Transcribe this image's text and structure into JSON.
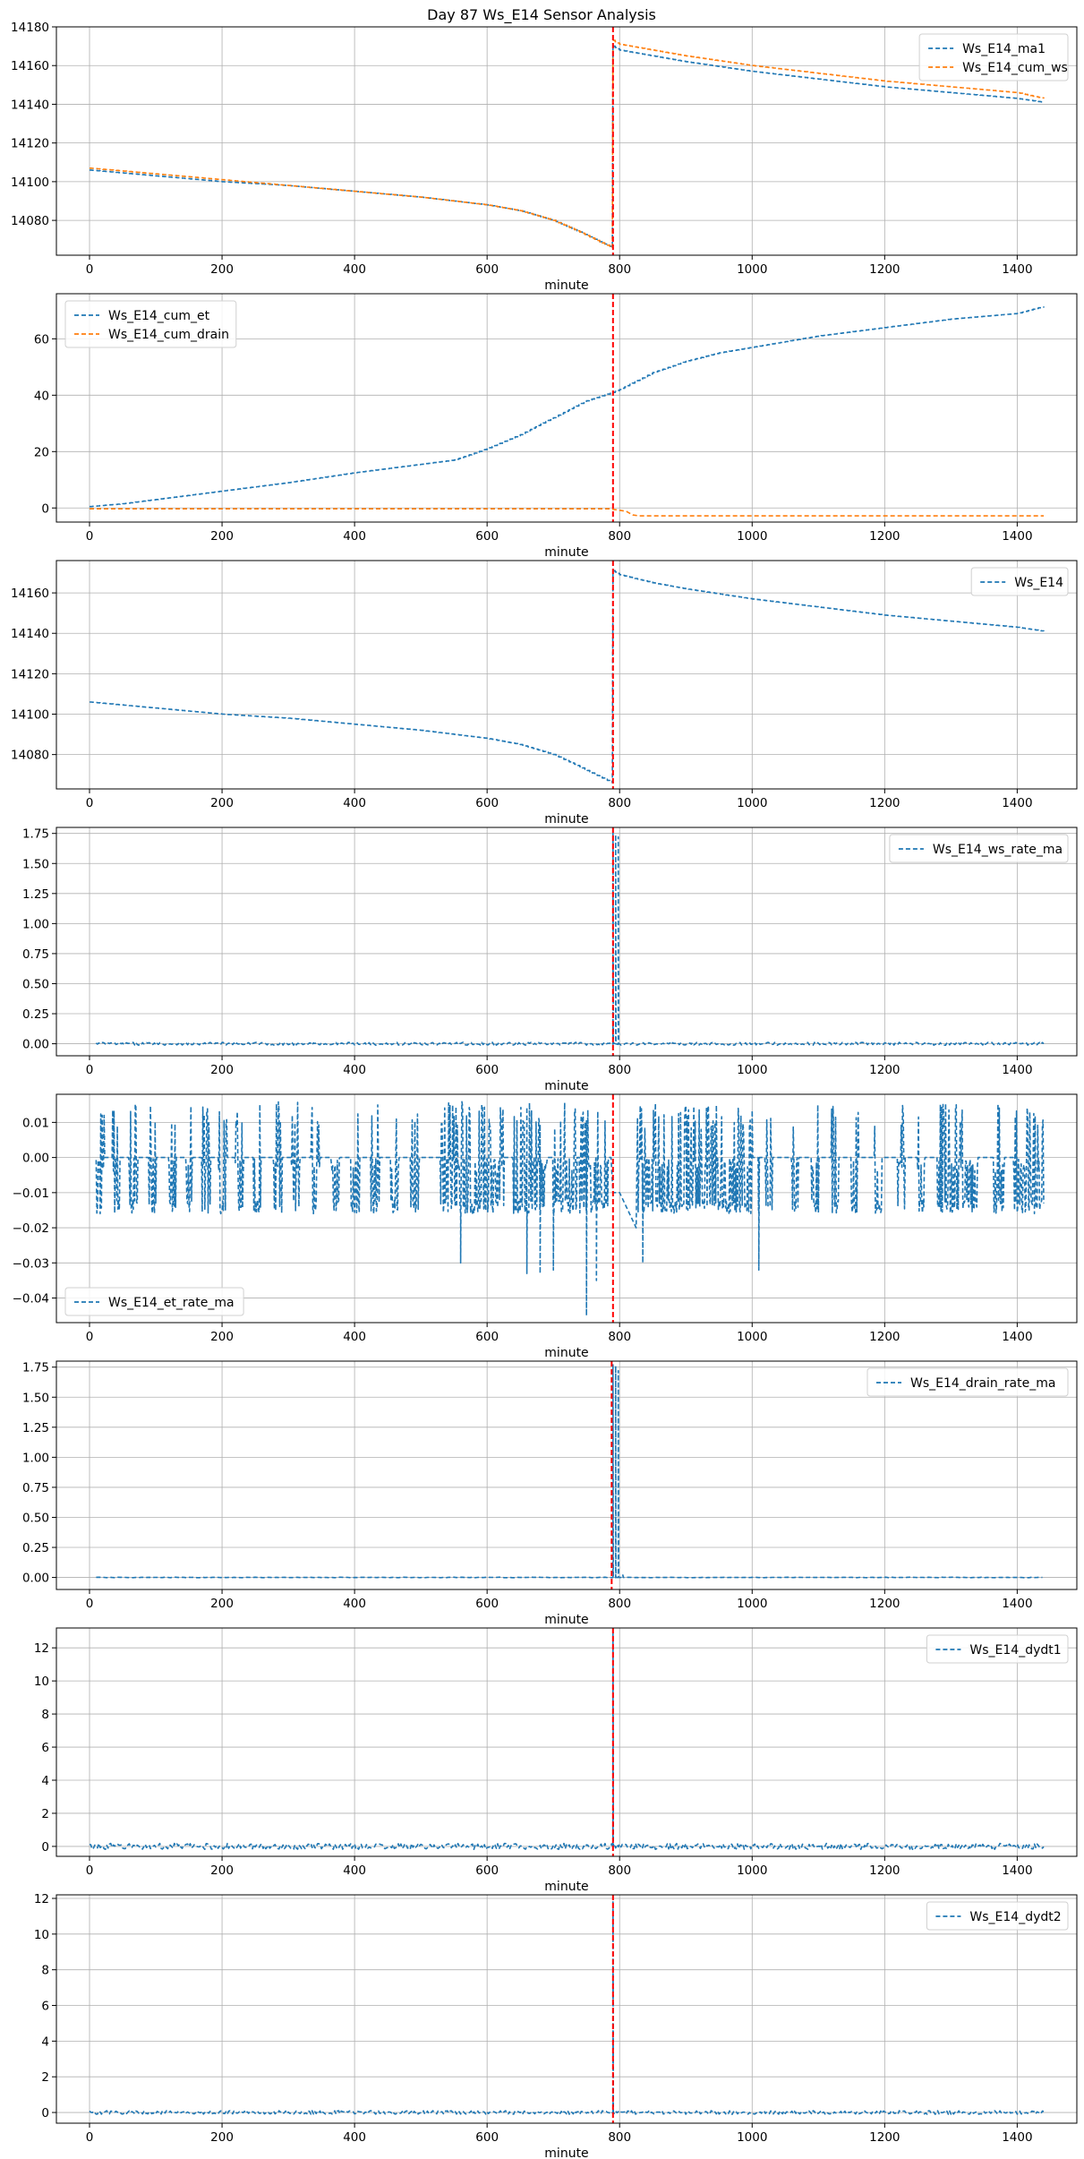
{
  "figure": {
    "title": "Day 87 Ws_E14 Sensor Analysis"
  },
  "colors": {
    "blue": "#1f77b4",
    "orange": "#ff7f0e",
    "event": "#ff0000",
    "grid": "#b0b0b0"
  },
  "chart_data": [
    {
      "type": "line",
      "xlabel": "minute",
      "legend_loc": "top-right",
      "xlim": [
        -50,
        1490
      ],
      "ylim": [
        14062,
        14180
      ],
      "xticks": [
        0,
        200,
        400,
        600,
        800,
        1000,
        1200,
        1400
      ],
      "yticks": [
        14080,
        14100,
        14120,
        14140,
        14160,
        14180
      ],
      "tick_decimals": 0,
      "event_x": 790,
      "series": [
        {
          "name": "Ws_E14_ma1",
          "color": "#1f77b4",
          "style": "dashed",
          "shape": "steps",
          "x": [
            0,
            100,
            200,
            300,
            400,
            500,
            550,
            600,
            650,
            700,
            740,
            770,
            789,
            790,
            800,
            850,
            900,
            1000,
            1100,
            1200,
            1300,
            1400,
            1440
          ],
          "y": [
            14106,
            14103,
            14100,
            14098,
            14095,
            14092,
            14090,
            14088,
            14085,
            14080,
            14074,
            14069,
            14066,
            14170,
            14168,
            14165,
            14162,
            14157,
            14153,
            14149,
            14146,
            14143,
            14141
          ]
        },
        {
          "name": "Ws_E14_cum_ws",
          "color": "#ff7f0e",
          "style": "dashed",
          "shape": "steps",
          "x": [
            0,
            100,
            200,
            300,
            400,
            500,
            550,
            600,
            650,
            700,
            740,
            770,
            789,
            790,
            800,
            850,
            900,
            1000,
            1100,
            1200,
            1300,
            1400,
            1440
          ],
          "y": [
            14107,
            14104,
            14101,
            14098,
            14095,
            14092,
            14090,
            14088,
            14085,
            14080,
            14074,
            14069,
            14066,
            14173,
            14171,
            14168,
            14165,
            14160,
            14156,
            14152,
            14149,
            14146,
            14143
          ]
        }
      ]
    },
    {
      "type": "line",
      "xlabel": "minute",
      "legend_loc": "top-left",
      "xlim": [
        -50,
        1490
      ],
      "ylim": [
        -5,
        76
      ],
      "xticks": [
        0,
        200,
        400,
        600,
        800,
        1000,
        1200,
        1400
      ],
      "yticks": [
        0,
        20,
        40,
        60
      ],
      "tick_decimals": 0,
      "event_x": 790,
      "series": [
        {
          "name": "Ws_E14_cum_et",
          "color": "#1f77b4",
          "style": "dashed",
          "shape": "steps",
          "x": [
            0,
            50,
            100,
            200,
            300,
            400,
            500,
            550,
            600,
            650,
            700,
            750,
            790,
            800,
            850,
            900,
            950,
            1000,
            1050,
            1100,
            1200,
            1300,
            1400,
            1440
          ],
          "y": [
            0.5,
            1.5,
            3,
            6,
            9,
            12.5,
            15.5,
            17,
            21,
            26,
            32,
            38,
            41,
            42,
            48,
            52,
            55,
            57,
            59,
            61,
            64,
            67,
            69,
            71.5
          ]
        },
        {
          "name": "Ws_E14_cum_drain",
          "color": "#ff7f0e",
          "style": "dashed",
          "shape": "line",
          "x": [
            0,
            785,
            790,
            800,
            810,
            820,
            830,
            1440
          ],
          "y": [
            -0.3,
            -0.3,
            -0.5,
            -0.8,
            -1.2,
            -2.5,
            -2.8,
            -2.8
          ]
        }
      ]
    },
    {
      "type": "line",
      "xlabel": "minute",
      "legend_loc": "top-right",
      "xlim": [
        -50,
        1490
      ],
      "ylim": [
        14063,
        14176
      ],
      "xticks": [
        0,
        200,
        400,
        600,
        800,
        1000,
        1200,
        1400
      ],
      "yticks": [
        14080,
        14100,
        14120,
        14140,
        14160
      ],
      "tick_decimals": 0,
      "event_x": 790,
      "series": [
        {
          "name": "Ws_E14",
          "color": "#1f77b4",
          "style": "dashed",
          "shape": "steps",
          "x": [
            0,
            100,
            200,
            300,
            400,
            500,
            550,
            600,
            650,
            700,
            740,
            770,
            789,
            790,
            800,
            850,
            900,
            1000,
            1100,
            1200,
            1300,
            1400,
            1440
          ],
          "y": [
            14106,
            14103,
            14100,
            14098,
            14095,
            14092,
            14090,
            14088,
            14085,
            14080,
            14074,
            14069,
            14066,
            14171,
            14169,
            14165,
            14162,
            14157,
            14153,
            14149,
            14146,
            14143,
            14141
          ]
        }
      ]
    },
    {
      "type": "line",
      "xlabel": "minute",
      "legend_loc": "top-right",
      "xlim": [
        -50,
        1490
      ],
      "ylim": [
        -0.1,
        1.8
      ],
      "xticks": [
        0,
        200,
        400,
        600,
        800,
        1000,
        1200,
        1400
      ],
      "yticks": [
        0.0,
        0.25,
        0.5,
        0.75,
        1.0,
        1.25,
        1.5,
        1.75
      ],
      "tick_decimals": 2,
      "event_x": 790,
      "series": [
        {
          "name": "Ws_E14_ws_rate_ma",
          "color": "#1f77b4",
          "style": "dashed",
          "shape": "noise",
          "x_range": [
            10,
            1440
          ],
          "base": 0,
          "noise_amp": 0.012,
          "noise_step": 2,
          "spikes": [
            {
              "x": 790,
              "y": 1.76
            },
            {
              "x": 794,
              "y": 1.74
            },
            {
              "x": 798,
              "y": 1.72
            }
          ]
        }
      ]
    },
    {
      "type": "line",
      "xlabel": "minute",
      "legend_loc": "bottom-left",
      "xlim": [
        -50,
        1490
      ],
      "ylim": [
        -0.047,
        0.018
      ],
      "xticks": [
        0,
        200,
        400,
        600,
        800,
        1000,
        1200,
        1400
      ],
      "yticks": [
        -0.04,
        -0.03,
        -0.02,
        -0.01,
        0.0,
        0.01
      ],
      "tick_decimals": 2,
      "event_x": 790,
      "series": [
        {
          "name": "Ws_E14_et_rate_ma",
          "color": "#1f77b4",
          "style": "dashed",
          "shape": "bursts",
          "x_range": [
            10,
            1440
          ],
          "base": 0,
          "high": 0.016,
          "low": -0.016,
          "bursts": [
            [
              10,
              22
            ],
            [
              35,
              45
            ],
            [
              60,
              72
            ],
            [
              90,
              100
            ],
            [
              120,
              130
            ],
            [
              145,
              155
            ],
            [
              170,
              182
            ],
            [
              195,
              207
            ],
            [
              220,
              232
            ],
            [
              248,
              258
            ],
            [
              278,
              290
            ],
            [
              305,
              317
            ],
            [
              335,
              347
            ],
            [
              365,
              377
            ],
            [
              395,
              407
            ],
            [
              425,
              437
            ],
            [
              455,
              467
            ],
            [
              485,
              497
            ],
            [
              530,
              625
            ],
            [
              640,
              690
            ],
            [
              700,
              735
            ],
            [
              740,
              782
            ],
            [
              820,
              1000
            ],
            [
              1020,
              1030
            ],
            [
              1060,
              1070
            ],
            [
              1090,
              1100
            ],
            [
              1120,
              1130
            ],
            [
              1150,
              1160
            ],
            [
              1185,
              1195
            ],
            [
              1220,
              1230
            ],
            [
              1250,
              1260
            ],
            [
              1280,
              1340
            ],
            [
              1365,
              1380
            ],
            [
              1395,
              1440
            ]
          ],
          "dips": [
            {
              "x": 560,
              "y": -0.03
            },
            {
              "x": 660,
              "y": -0.033
            },
            {
              "x": 680,
              "y": -0.033
            },
            {
              "x": 700,
              "y": -0.032
            },
            {
              "x": 750,
              "y": -0.045
            },
            {
              "x": 765,
              "y": -0.035
            },
            {
              "x": 835,
              "y": -0.03
            },
            {
              "x": 1010,
              "y": -0.032
            }
          ],
          "ramp": {
            "x": [
              790,
              800,
              810,
              820,
              825
            ],
            "y": [
              -0.01,
              -0.01,
              -0.014,
              -0.018,
              -0.02
            ]
          }
        }
      ]
    },
    {
      "type": "line",
      "xlabel": "minute",
      "legend_loc": "top-right",
      "xlim": [
        -50,
        1490
      ],
      "ylim": [
        -0.1,
        1.8
      ],
      "xticks": [
        0,
        200,
        400,
        600,
        800,
        1000,
        1200,
        1400
      ],
      "yticks": [
        0.0,
        0.25,
        0.5,
        0.75,
        1.0,
        1.25,
        1.5,
        1.75
      ],
      "tick_decimals": 2,
      "event_x": 788,
      "series": [
        {
          "name": "Ws_E14_drain_rate_ma",
          "color": "#1f77b4",
          "style": "dashed",
          "shape": "noise",
          "x_range": [
            10,
            1440
          ],
          "base": 0,
          "noise_amp": 0.002,
          "noise_step": 4,
          "spikes": [
            {
              "x": 790,
              "y": 1.77
            },
            {
              "x": 794,
              "y": 1.76
            },
            {
              "x": 798,
              "y": 1.72
            },
            {
              "x": 805,
              "y": 0.02
            }
          ]
        }
      ]
    },
    {
      "type": "line",
      "xlabel": "minute",
      "legend_loc": "top-right",
      "xlim": [
        -50,
        1490
      ],
      "ylim": [
        -0.6,
        13.2
      ],
      "xticks": [
        0,
        200,
        400,
        600,
        800,
        1000,
        1200,
        1400
      ],
      "yticks": [
        0,
        2,
        4,
        6,
        8,
        10,
        12
      ],
      "tick_decimals": 0,
      "event_x": 790,
      "series": [
        {
          "name": "Ws_E14_dydt1",
          "color": "#1f77b4",
          "style": "dashed",
          "shape": "noise",
          "x_range": [
            0,
            1440
          ],
          "base": 0,
          "noise_amp": 0.18,
          "noise_step": 2,
          "spikes": [
            {
              "x": 790,
              "y": 12.9
            }
          ]
        }
      ]
    },
    {
      "type": "line",
      "xlabel": "minute",
      "legend_loc": "top-right",
      "xlim": [
        -50,
        1490
      ],
      "ylim": [
        -0.6,
        12.2
      ],
      "xticks": [
        0,
        200,
        400,
        600,
        800,
        1000,
        1200,
        1400
      ],
      "yticks": [
        0,
        2,
        4,
        6,
        8,
        10,
        12
      ],
      "tick_decimals": 0,
      "event_x": 790,
      "series": [
        {
          "name": "Ws_E14_dydt2",
          "color": "#1f77b4",
          "style": "dashed",
          "shape": "noise",
          "x_range": [
            0,
            1440
          ],
          "base": 0,
          "noise_amp": 0.1,
          "noise_step": 2,
          "spikes": [
            {
              "x": 790,
              "y": 11.9
            }
          ]
        }
      ]
    }
  ]
}
